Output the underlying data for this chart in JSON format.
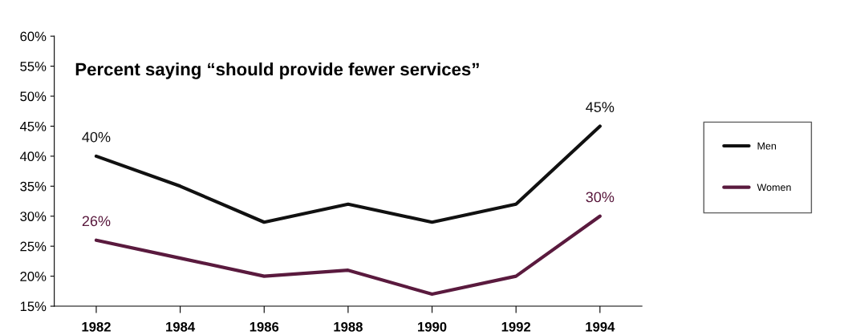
{
  "chart_data": {
    "type": "line",
    "title": "Percent saying “should provide fewer services”",
    "categories": [
      "1982",
      "1984",
      "1986",
      "1988",
      "1990",
      "1992",
      "1994"
    ],
    "series": [
      {
        "name": "Men",
        "color": "#111111",
        "values": [
          40,
          35,
          29,
          32,
          29,
          32,
          45
        ]
      },
      {
        "name": "Women",
        "color": "#5a1a3e",
        "values": [
          26,
          23,
          20,
          21,
          17,
          20,
          30
        ]
      }
    ],
    "ylim": [
      15,
      60
    ],
    "yticks": [
      {
        "value": 15,
        "label": "15%"
      },
      {
        "value": 20,
        "label": "20%"
      },
      {
        "value": 25,
        "label": "25%"
      },
      {
        "value": 30,
        "label": "30%"
      },
      {
        "value": 35,
        "label": "35%"
      },
      {
        "value": 40,
        "label": "40%"
      },
      {
        "value": 45,
        "label": "45%"
      },
      {
        "value": 50,
        "label": "50%"
      },
      {
        "value": 55,
        "label": "55%"
      },
      {
        "value": 60,
        "label": "60%"
      }
    ],
    "annotations": [
      {
        "text": "40%",
        "x": "1982",
        "y": 40
      },
      {
        "text": "45%",
        "x": "1994",
        "y": 45
      },
      {
        "text": "26%",
        "x": "1982",
        "y": 26
      },
      {
        "text": "30%",
        "x": "1994",
        "y": 30
      }
    ],
    "grid": false,
    "legend": "right",
    "marker": "none",
    "line_style": "solid"
  }
}
